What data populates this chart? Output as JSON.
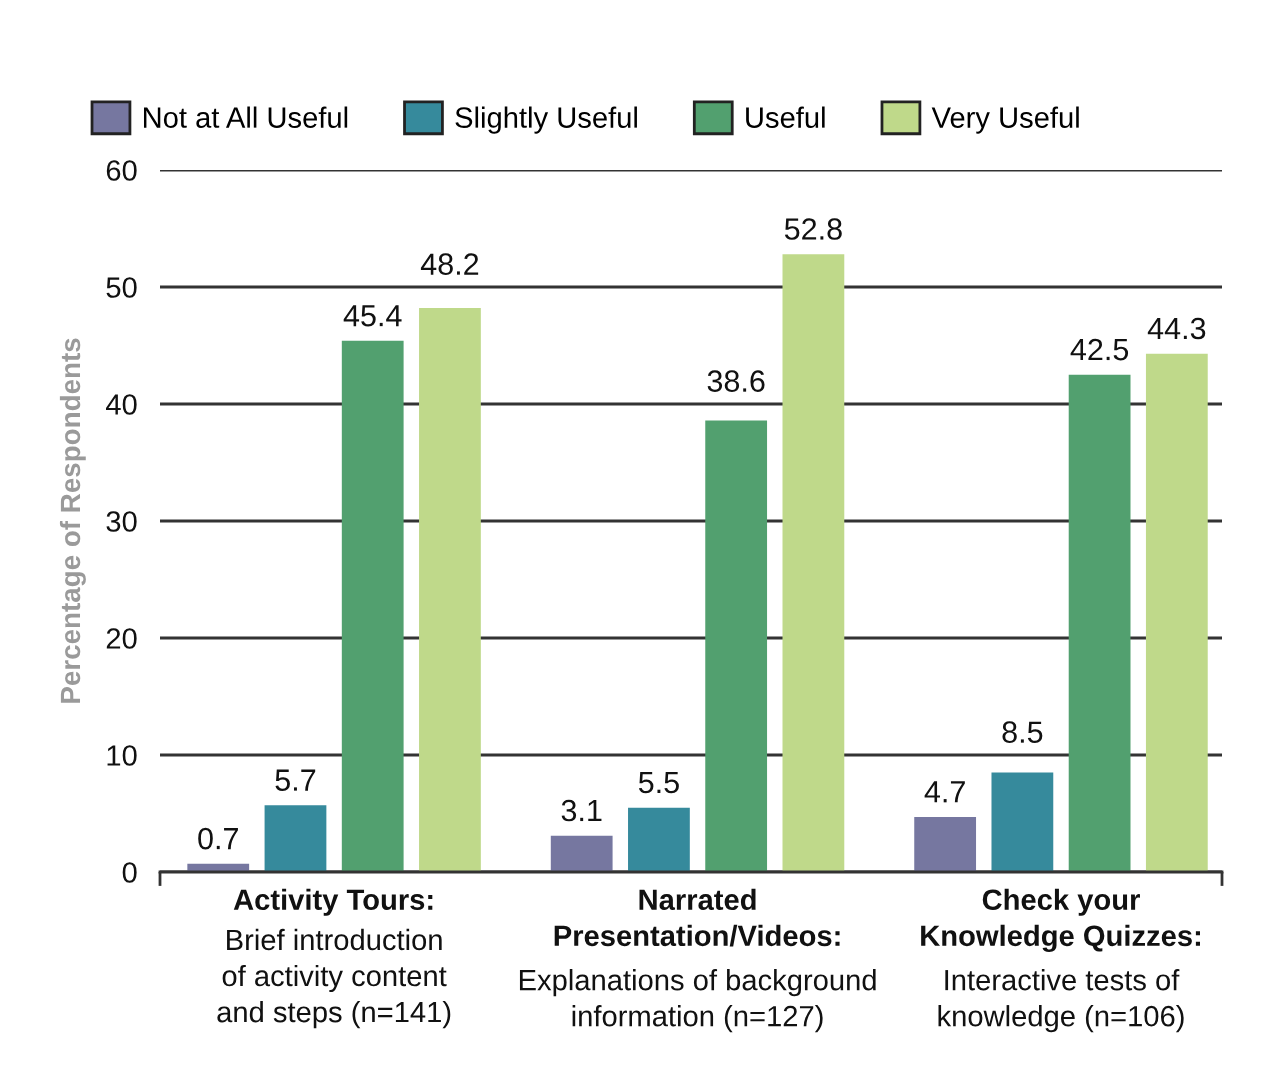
{
  "chart_data": {
    "type": "bar",
    "ylabel": "Percentage of Respondents",
    "categories": [
      "Activity Tours:\nBrief introduction\nof activity content\nand steps (n=141)",
      "Narrated\nPresentation/Videos:\nExplanations of background\ninformation (n=127)",
      "Check your\nKnowledge Quizzes:\nInteractive tests of\nknowledge (n=106)"
    ],
    "series": [
      {
        "name": "Not at All Useful",
        "color": "#7677a0",
        "values": [
          0.7,
          3.1,
          4.7
        ]
      },
      {
        "name": "Slightly Useful",
        "color": "#368a9c",
        "values": [
          5.7,
          5.5,
          8.5
        ]
      },
      {
        "name": "Useful",
        "color": "#52a06f",
        "values": [
          45.4,
          38.6,
          42.5
        ]
      },
      {
        "name": "Very Useful",
        "color": "#bfd98a",
        "values": [
          48.2,
          52.8,
          44.3
        ]
      }
    ],
    "ylim": [
      0,
      60
    ],
    "yticks": [
      0,
      10,
      20,
      30,
      40,
      50,
      60
    ],
    "grid": "y",
    "legend": "top",
    "data_labels": true
  }
}
